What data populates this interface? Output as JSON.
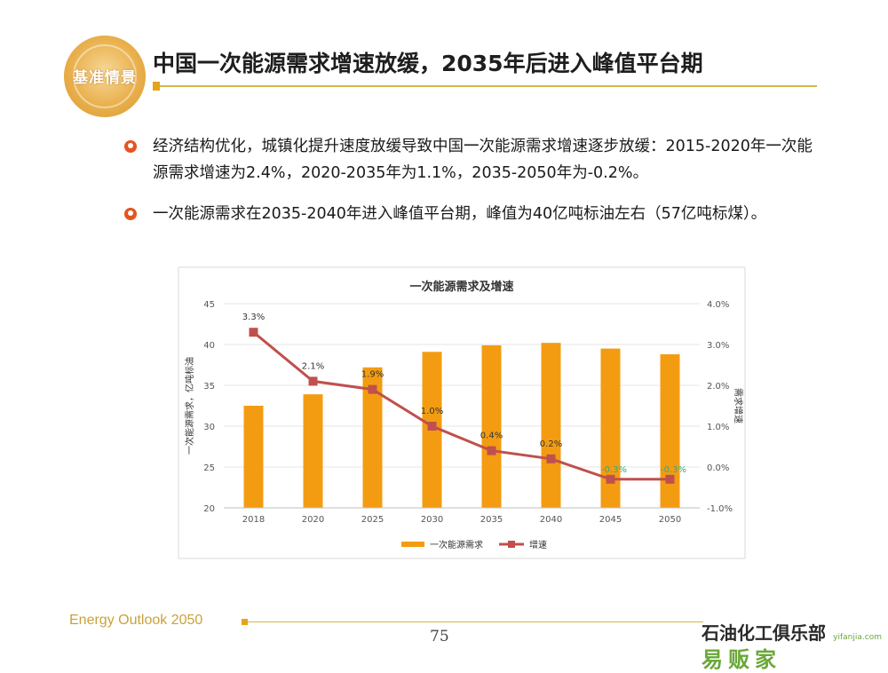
{
  "header": {
    "logo_label": "基准情景",
    "title": "中国一次能源需求增速放缓，2035年后进入峰值平台期"
  },
  "bullets": [
    {
      "text": "经济结构优化，城镇化提升速度放缓导致中国一次能源需求增速逐步放缓：2015-2020年一次能源需求增速为2.4%，2020-2035年为1.1%，2035-2050年为-0.2%。"
    },
    {
      "text": "一次能源需求在2035-2040年进入峰值平台期，峰值为40亿吨标油左右（57亿吨标煤）。"
    }
  ],
  "chart_data": {
    "type": "bar",
    "title": "一次能源需求及增速",
    "categories": [
      "2018",
      "2020",
      "2025",
      "2030",
      "2035",
      "2040",
      "2045",
      "2050"
    ],
    "ylabel": "一次能源需求，亿吨标油",
    "y2label": "需求增速",
    "ylim": [
      20,
      45
    ],
    "yticks": [
      "20",
      "25",
      "30",
      "35",
      "40",
      "45"
    ],
    "y2lim": [
      -1.0,
      4.0
    ],
    "y2ticks": [
      "-1.0%",
      "0.0%",
      "1.0%",
      "2.0%",
      "3.0%",
      "4.0%"
    ],
    "legend_position": "bottom",
    "series": [
      {
        "name": "一次能源需求",
        "type": "bar",
        "axis": "left",
        "color": "#f39c12",
        "values": [
          32.5,
          33.9,
          37.2,
          39.1,
          39.9,
          40.2,
          39.5,
          38.8
        ]
      },
      {
        "name": "增速",
        "type": "line",
        "axis": "right",
        "color": "#c0504d",
        "values": [
          3.3,
          2.1,
          1.9,
          1.0,
          0.4,
          0.2,
          -0.3,
          -0.3
        ],
        "labels": [
          "3.3%",
          "2.1%",
          "1.9%",
          "1.0%",
          "0.4%",
          "0.2%",
          "-0.3%",
          "-0.3%"
        ]
      }
    ]
  },
  "footer": {
    "label": "Energy Outlook 2050",
    "page_number": "75"
  },
  "watermark": {
    "top_text": "石油化工俱乐部",
    "bottom_text": "易贩家",
    "url": "yifanjia.com"
  },
  "colors": {
    "accent_gold": "#d6b64a",
    "bar_orange": "#f39c12",
    "line_red": "#c0504d",
    "negative_label_green": "#3aa77a"
  }
}
